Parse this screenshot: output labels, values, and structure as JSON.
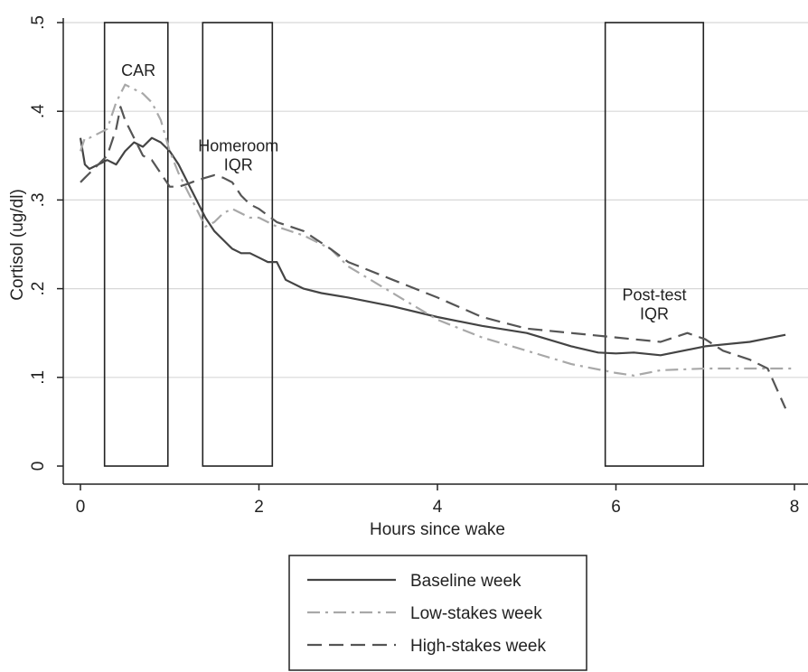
{
  "chart_data": {
    "type": "line",
    "xlabel": "Hours since wake",
    "ylabel": "Cortisol (ug/dl)",
    "xlim": [
      0,
      8
    ],
    "ylim": [
      0,
      0.5
    ],
    "xticks": [
      {
        "value": 0,
        "label": "0"
      },
      {
        "value": 2,
        "label": "2"
      },
      {
        "value": 4,
        "label": "4"
      },
      {
        "value": 6,
        "label": "6"
      },
      {
        "value": 8,
        "label": "8"
      }
    ],
    "yticks": [
      {
        "value": 0,
        "label": "0"
      },
      {
        "value": 0.1,
        "label": ".1"
      },
      {
        "value": 0.2,
        "label": ".2"
      },
      {
        "value": 0.3,
        "label": ".3"
      },
      {
        "value": 0.4,
        "label": ".4"
      },
      {
        "value": 0.5,
        "label": ".5"
      }
    ],
    "grid": "horizontal",
    "legend_position": "bottom",
    "windows": [
      {
        "label": "CAR",
        "x0": 0.27,
        "x1": 0.98,
        "label_lines": [
          "CAR"
        ]
      },
      {
        "label": "Homeroom IQR",
        "x0": 1.37,
        "x1": 2.15,
        "label_lines": [
          "Homeroom",
          "IQR"
        ]
      },
      {
        "label": "Post-test IQR",
        "x0": 5.88,
        "x1": 6.98,
        "label_lines": [
          "Post-test",
          "IQR"
        ]
      }
    ],
    "series": [
      {
        "name": "Baseline week",
        "color": "#444444",
        "dash": "solid",
        "x": [
          0,
          0.05,
          0.1,
          0.2,
          0.3,
          0.4,
          0.5,
          0.6,
          0.7,
          0.8,
          0.9,
          1.0,
          1.1,
          1.2,
          1.3,
          1.4,
          1.5,
          1.6,
          1.7,
          1.8,
          1.9,
          2.0,
          2.1,
          2.2,
          2.3,
          2.5,
          2.7,
          3.0,
          3.5,
          4.0,
          4.5,
          5.0,
          5.5,
          5.8,
          6.0,
          6.2,
          6.5,
          7.0,
          7.5,
          7.9
        ],
        "y": [
          0.37,
          0.34,
          0.335,
          0.34,
          0.345,
          0.34,
          0.355,
          0.365,
          0.36,
          0.37,
          0.365,
          0.355,
          0.34,
          0.32,
          0.3,
          0.28,
          0.265,
          0.255,
          0.245,
          0.24,
          0.24,
          0.235,
          0.23,
          0.23,
          0.21,
          0.2,
          0.195,
          0.19,
          0.18,
          0.168,
          0.158,
          0.15,
          0.135,
          0.128,
          0.127,
          0.128,
          0.125,
          0.135,
          0.14,
          0.148
        ]
      },
      {
        "name": "Low-stakes week",
        "color": "#a8a8a8",
        "dash": "dashdot",
        "x": [
          0,
          0.05,
          0.1,
          0.2,
          0.3,
          0.4,
          0.5,
          0.6,
          0.7,
          0.8,
          0.9,
          1.0,
          1.1,
          1.2,
          1.3,
          1.4,
          1.5,
          1.6,
          1.7,
          1.8,
          1.9,
          2.0,
          2.2,
          2.5,
          2.8,
          3.0,
          3.5,
          4.0,
          4.5,
          5.0,
          5.5,
          6.0,
          6.2,
          6.5,
          7.0,
          7.5,
          8.0
        ],
        "y": [
          0.355,
          0.37,
          0.37,
          0.375,
          0.38,
          0.41,
          0.43,
          0.425,
          0.42,
          0.41,
          0.39,
          0.355,
          0.33,
          0.31,
          0.29,
          0.27,
          0.275,
          0.285,
          0.29,
          0.285,
          0.28,
          0.28,
          0.27,
          0.26,
          0.245,
          0.225,
          0.195,
          0.165,
          0.145,
          0.13,
          0.115,
          0.105,
          0.102,
          0.108,
          0.11,
          0.11,
          0.11
        ]
      },
      {
        "name": "High-stakes week",
        "color": "#555555",
        "dash": "dashed",
        "x": [
          0,
          0.05,
          0.1,
          0.2,
          0.3,
          0.4,
          0.45,
          0.5,
          0.6,
          0.7,
          0.8,
          0.9,
          1.0,
          1.1,
          1.2,
          1.3,
          1.4,
          1.5,
          1.6,
          1.7,
          1.8,
          1.9,
          2.0,
          2.2,
          2.5,
          2.8,
          3.0,
          3.5,
          4.0,
          4.5,
          5.0,
          5.5,
          6.0,
          6.2,
          6.5,
          6.8,
          7.0,
          7.2,
          7.5,
          7.7,
          7.9
        ],
        "y": [
          0.32,
          0.325,
          0.33,
          0.34,
          0.35,
          0.38,
          0.405,
          0.39,
          0.37,
          0.35,
          0.345,
          0.33,
          0.315,
          0.315,
          0.318,
          0.322,
          0.325,
          0.328,
          0.325,
          0.32,
          0.305,
          0.295,
          0.29,
          0.275,
          0.265,
          0.245,
          0.23,
          0.21,
          0.19,
          0.168,
          0.155,
          0.15,
          0.145,
          0.143,
          0.14,
          0.15,
          0.143,
          0.13,
          0.12,
          0.11,
          0.065
        ]
      }
    ]
  }
}
